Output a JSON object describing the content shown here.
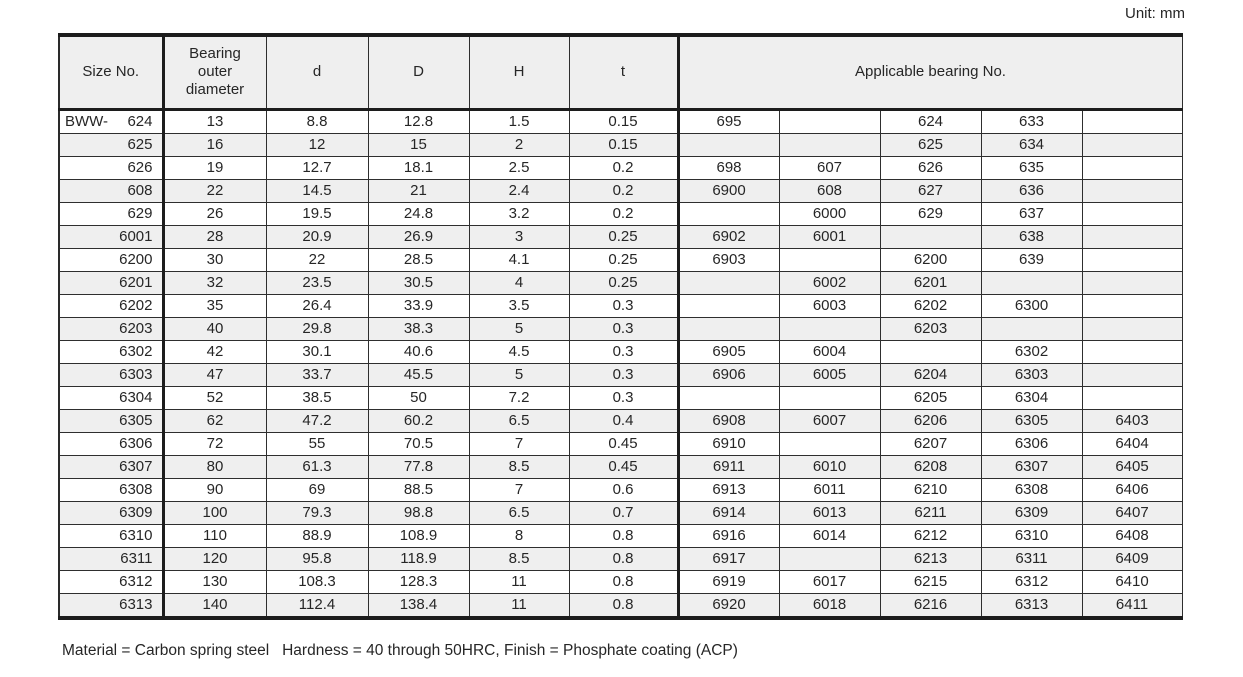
{
  "page": {
    "unit_label": "Unit: mm",
    "footer_note": "Material = Carbon spring steel   Hardness = 40 through 50HRC, Finish = Phosphate coating (ACP)"
  },
  "table": {
    "headers": {
      "size_no": "Size No.",
      "outer_diameter": "Bearing\nouter\ndiameter",
      "d": "d",
      "D": "D",
      "H": "H",
      "t": "t",
      "applicable": "Applicable bearing No."
    },
    "size_prefix": "BWW-",
    "columns": [
      "size_no",
      "bearing_outer_diameter",
      "d",
      "D",
      "H",
      "t",
      "applicable_1",
      "applicable_2",
      "applicable_3",
      "applicable_4",
      "applicable_5"
    ],
    "rows": [
      [
        "624",
        "13",
        "8.8",
        "12.8",
        "1.5",
        "0.15",
        "695",
        "",
        "624",
        "633",
        ""
      ],
      [
        "625",
        "16",
        "12",
        "15",
        "2",
        "0.15",
        "",
        "",
        "625",
        "634",
        ""
      ],
      [
        "626",
        "19",
        "12.7",
        "18.1",
        "2.5",
        "0.2",
        "698",
        "607",
        "626",
        "635",
        ""
      ],
      [
        "608",
        "22",
        "14.5",
        "21",
        "2.4",
        "0.2",
        "6900",
        "608",
        "627",
        "636",
        ""
      ],
      [
        "629",
        "26",
        "19.5",
        "24.8",
        "3.2",
        "0.2",
        "",
        "6000",
        "629",
        "637",
        ""
      ],
      [
        "6001",
        "28",
        "20.9",
        "26.9",
        "3",
        "0.25",
        "6902",
        "6001",
        "",
        "638",
        ""
      ],
      [
        "6200",
        "30",
        "22",
        "28.5",
        "4.1",
        "0.25",
        "6903",
        "",
        "6200",
        "639",
        ""
      ],
      [
        "6201",
        "32",
        "23.5",
        "30.5",
        "4",
        "0.25",
        "",
        "6002",
        "6201",
        "",
        ""
      ],
      [
        "6202",
        "35",
        "26.4",
        "33.9",
        "3.5",
        "0.3",
        "",
        "6003",
        "6202",
        "6300",
        ""
      ],
      [
        "6203",
        "40",
        "29.8",
        "38.3",
        "5",
        "0.3",
        "",
        "",
        "6203",
        "",
        ""
      ],
      [
        "6302",
        "42",
        "30.1",
        "40.6",
        "4.5",
        "0.3",
        "6905",
        "6004",
        "",
        "6302",
        ""
      ],
      [
        "6303",
        "47",
        "33.7",
        "45.5",
        "5",
        "0.3",
        "6906",
        "6005",
        "6204",
        "6303",
        ""
      ],
      [
        "6304",
        "52",
        "38.5",
        "50",
        "7.2",
        "0.3",
        "",
        "",
        "6205",
        "6304",
        ""
      ],
      [
        "6305",
        "62",
        "47.2",
        "60.2",
        "6.5",
        "0.4",
        "6908",
        "6007",
        "6206",
        "6305",
        "6403"
      ],
      [
        "6306",
        "72",
        "55",
        "70.5",
        "7",
        "0.45",
        "6910",
        "",
        "6207",
        "6306",
        "6404"
      ],
      [
        "6307",
        "80",
        "61.3",
        "77.8",
        "8.5",
        "0.45",
        "6911",
        "6010",
        "6208",
        "6307",
        "6405"
      ],
      [
        "6308",
        "90",
        "69",
        "88.5",
        "7",
        "0.6",
        "6913",
        "6011",
        "6210",
        "6308",
        "6406"
      ],
      [
        "6309",
        "100",
        "79.3",
        "98.8",
        "6.5",
        "0.7",
        "6914",
        "6013",
        "6211",
        "6309",
        "6407"
      ],
      [
        "6310",
        "110",
        "88.9",
        "108.9",
        "8",
        "0.8",
        "6916",
        "6014",
        "6212",
        "6310",
        "6408"
      ],
      [
        "6311",
        "120",
        "95.8",
        "118.9",
        "8.5",
        "0.8",
        "6917",
        "",
        "6213",
        "6311",
        "6409"
      ],
      [
        "6312",
        "130",
        "108.3",
        "128.3",
        "11",
        "0.8",
        "6919",
        "6017",
        "6215",
        "6312",
        "6410"
      ],
      [
        "6313",
        "140",
        "112.4",
        "138.4",
        "11",
        "0.8",
        "6920",
        "6018",
        "6216",
        "6313",
        "6411"
      ]
    ]
  },
  "colors": {
    "shade": "#efefef",
    "border_thick": "#1c1c1c",
    "text": "#262626"
  }
}
